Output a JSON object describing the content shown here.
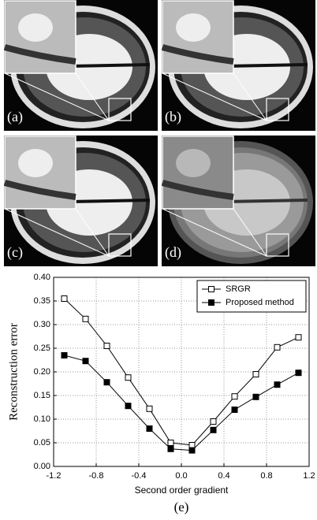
{
  "panels": [
    {
      "label": "(a)"
    },
    {
      "label": "(b)"
    },
    {
      "label": "(c)"
    },
    {
      "label": "(d)"
    }
  ],
  "chart_data": {
    "type": "line",
    "x_label": "Second order gradient",
    "y_label": "Reconstruction error",
    "caption": "(e)",
    "x": [
      -1.1,
      -0.9,
      -0.7,
      -0.5,
      -0.3,
      -0.1,
      0.1,
      0.3,
      0.5,
      0.7,
      0.9,
      1.1
    ],
    "series": [
      {
        "name": "SRGR",
        "color": "#000000",
        "marker_fill": "#ffffff",
        "values": [
          0.355,
          0.312,
          0.255,
          0.188,
          0.122,
          0.05,
          0.045,
          0.095,
          0.148,
          0.195,
          0.252,
          0.273
        ]
      },
      {
        "name": "Proposed method",
        "color": "#000000",
        "marker_fill": "#000000",
        "values": [
          0.235,
          0.223,
          0.178,
          0.128,
          0.08,
          0.037,
          0.034,
          0.077,
          0.12,
          0.147,
          0.173,
          0.198
        ]
      }
    ],
    "xlim": [
      -1.2,
      1.2
    ],
    "xticks": [
      -1.2,
      -0.8,
      -0.4,
      {
        "value": 0,
        "label": "0.0"
      },
      0.4,
      0.8,
      1.2
    ],
    "ylim": [
      0,
      0.4
    ],
    "yticks": [
      {
        "value": 0,
        "label": "0.00"
      },
      0.05,
      {
        "value": 0.1,
        "label": "0.10"
      },
      0.15,
      {
        "value": 0.2,
        "label": "0.20"
      },
      0.25,
      {
        "value": 0.3,
        "label": "0.30"
      },
      0.35,
      {
        "value": 0.4,
        "label": "0.40"
      }
    ],
    "grid": true,
    "legend": "top-right"
  }
}
